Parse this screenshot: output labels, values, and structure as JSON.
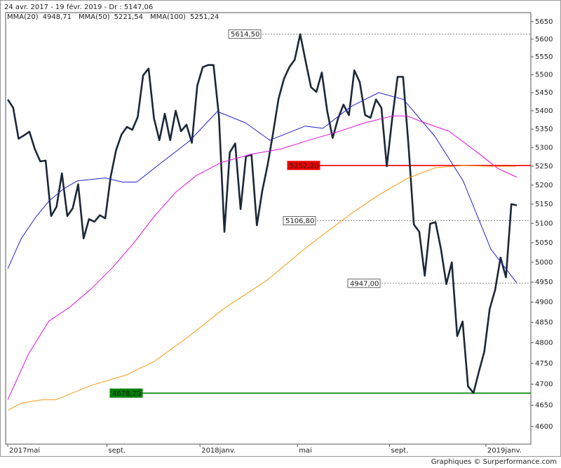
{
  "chart_data": {
    "type": "line",
    "title": "24 avr. 2017 - 19 févr. 2019 - Dr : 5147,06",
    "footer": "Graphiques © Surperformance.com",
    "log_scale": true,
    "xlim": [
      -0.4,
      96.6
    ],
    "xticks": [
      {
        "value": 0,
        "label": "2017mai"
      },
      {
        "value": 18.3,
        "label": "sept."
      },
      {
        "value": 35.5,
        "label": "2018janv."
      },
      {
        "value": 53.5,
        "label": "mai"
      },
      {
        "value": 70.5,
        "label": "sept."
      },
      {
        "value": 88.3,
        "label": "2019janv."
      }
    ],
    "ylim": [
      4559,
      5676
    ],
    "yticks": [
      4600,
      4650,
      4700,
      4750,
      4800,
      4850,
      4900,
      4950,
      5000,
      5050,
      5100,
      5150,
      5200,
      5250,
      5300,
      5350,
      5400,
      5450,
      5500,
      5550,
      5600,
      5650
    ],
    "series": [
      {
        "color": "#1b2838",
        "x": [
          0,
          1,
          2,
          3,
          4,
          5,
          6,
          7,
          8,
          9,
          10,
          11,
          12,
          13,
          14,
          15,
          16,
          17,
          18,
          19,
          20,
          21,
          22,
          23,
          24,
          25,
          26,
          27,
          28,
          29,
          30,
          31,
          32,
          33,
          34,
          35,
          36,
          37,
          38,
          39,
          40,
          41,
          42,
          43,
          44,
          45,
          46,
          47,
          48,
          49,
          50,
          51,
          52,
          53,
          54,
          55,
          56,
          57,
          58,
          59,
          60,
          61,
          62,
          63,
          64,
          65,
          66,
          67,
          68,
          69,
          70,
          71,
          72,
          73,
          74,
          75,
          76,
          77,
          78,
          79,
          80,
          81,
          82,
          83,
          84,
          85,
          86,
          87,
          88,
          89,
          90,
          91,
          92,
          93,
          94
        ],
        "values": [
          5431,
          5408,
          5324,
          5333,
          5343,
          5296,
          5263,
          5265,
          5119,
          5143,
          5231,
          5119,
          5139,
          5202,
          5061,
          5111,
          5104,
          5121,
          5113,
          5222,
          5293,
          5335,
          5356,
          5348,
          5383,
          5498,
          5517,
          5379,
          5320,
          5392,
          5320,
          5400,
          5344,
          5362,
          5313,
          5469,
          5521,
          5527,
          5527,
          5385,
          5078,
          5287,
          5311,
          5137,
          5277,
          5281,
          5095,
          5185,
          5254,
          5339,
          5433,
          5488,
          5521,
          5542,
          5614,
          5538,
          5465,
          5452,
          5506,
          5398,
          5326,
          5379,
          5417,
          5388,
          5512,
          5479,
          5388,
          5381,
          5431,
          5408,
          5250,
          5379,
          5494,
          5494,
          5307,
          5097,
          5078,
          4966,
          5099,
          5103,
          5034,
          4945,
          5000,
          4816,
          4852,
          4695,
          4679,
          4730,
          4778,
          4883,
          4930,
          5012,
          4962,
          5150,
          5147
        ]
      },
      {
        "name": "MMA(20)",
        "last_label": "4948,71",
        "color": "#2323c8",
        "x": [
          0,
          2.5,
          5.1,
          7.6,
          10.2,
          12.8,
          15.4,
          18.0,
          21.2,
          23.8,
          28.4,
          33.5,
          38.7,
          43.9,
          48.4,
          54.9,
          58.2,
          63.3,
          68.5,
          73.1,
          78.9,
          84.1,
          89.2,
          94
        ],
        "values": [
          4984,
          5061,
          5115,
          5158,
          5189,
          5211,
          5215,
          5219,
          5208,
          5208,
          5260,
          5317,
          5398,
          5367,
          5320,
          5358,
          5352,
          5411,
          5450,
          5431,
          5330,
          5211,
          5034,
          4948
        ]
      },
      {
        "name": "MMA(50)",
        "last_label": "5221,54",
        "color": "#dd10dd",
        "x": [
          0,
          3.8,
          7.6,
          11.5,
          15.4,
          19.3,
          23.2,
          27.1,
          31.0,
          34.8,
          39.4,
          45.2,
          50.4,
          55.6,
          60.8,
          65.9,
          71.1,
          73.7,
          76.3,
          81.5,
          86.7,
          90.5,
          94
        ],
        "values": [
          4663,
          4772,
          4853,
          4888,
          4933,
          4986,
          5048,
          5119,
          5181,
          5225,
          5260,
          5283,
          5296,
          5320,
          5342,
          5367,
          5386,
          5386,
          5371,
          5344,
          5287,
          5244,
          5221
        ]
      },
      {
        "name": "MMA(100)",
        "last_label": "5251,24",
        "color": "#f59a10",
        "x": [
          0,
          2.5,
          6.3,
          8.9,
          15.4,
          21.9,
          27.1,
          33.5,
          40.0,
          47.8,
          55.6,
          63.3,
          68.5,
          73.7,
          78.9,
          84.1,
          89.2,
          94
        ],
        "values": [
          4638,
          4655,
          4663,
          4663,
          4697,
          4722,
          4755,
          4816,
          4885,
          4954,
          5043,
          5124,
          5174,
          5217,
          5246,
          5252,
          5250,
          5250
        ]
      }
    ],
    "hlines": [
      {
        "value": 5614.5,
        "label": "5614,50",
        "color": "#888888",
        "style": "dotted"
      },
      {
        "value": 5252.2,
        "label": "5252,20",
        "color": "#ee0000",
        "style": "solid"
      },
      {
        "value": 5106.8,
        "label": "5106,80",
        "color": "#888888",
        "style": "dotted"
      },
      {
        "value": 4947.0,
        "label": "4947,00",
        "color": "#888888",
        "style": "dotted"
      },
      {
        "value": 4678.7,
        "label": "4678,70",
        "color": "#008000",
        "style": "solid"
      }
    ]
  }
}
